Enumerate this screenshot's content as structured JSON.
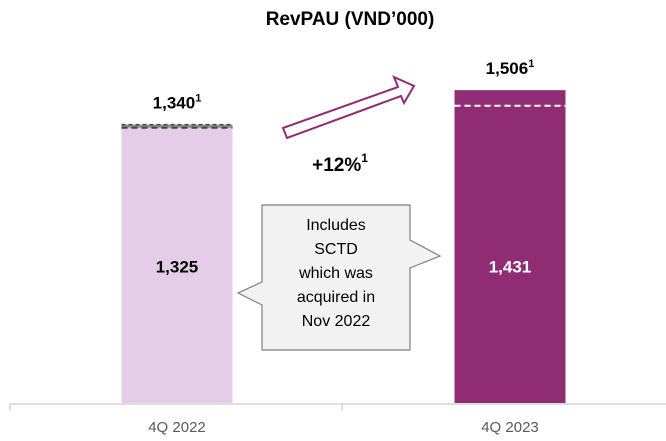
{
  "chart_data": {
    "type": "stacked_bar",
    "title": "RevPAU (VND’000)",
    "categories": [
      "4Q 2022",
      "4Q 2023"
    ],
    "series": [
      {
        "colors": [
          "#e5cde9",
          "#8f2c73"
        ],
        "values": [
          1325,
          1431
        ],
        "value_labels": [
          "1,325",
          "1,431"
        ]
      },
      {
        "colors": [
          "#8c8c8c",
          "#8f2c73"
        ],
        "values": [
          15,
          75
        ]
      }
    ],
    "totals": [
      1340,
      1506
    ],
    "total_labels": [
      "1,340",
      "1,506"
    ],
    "footnote": "1",
    "change_label": "+12%",
    "callout": [
      "Includes",
      "SCTD",
      "which was",
      "acquired in",
      "Nov 2022"
    ],
    "ylim": [
      0,
      1940
    ]
  }
}
